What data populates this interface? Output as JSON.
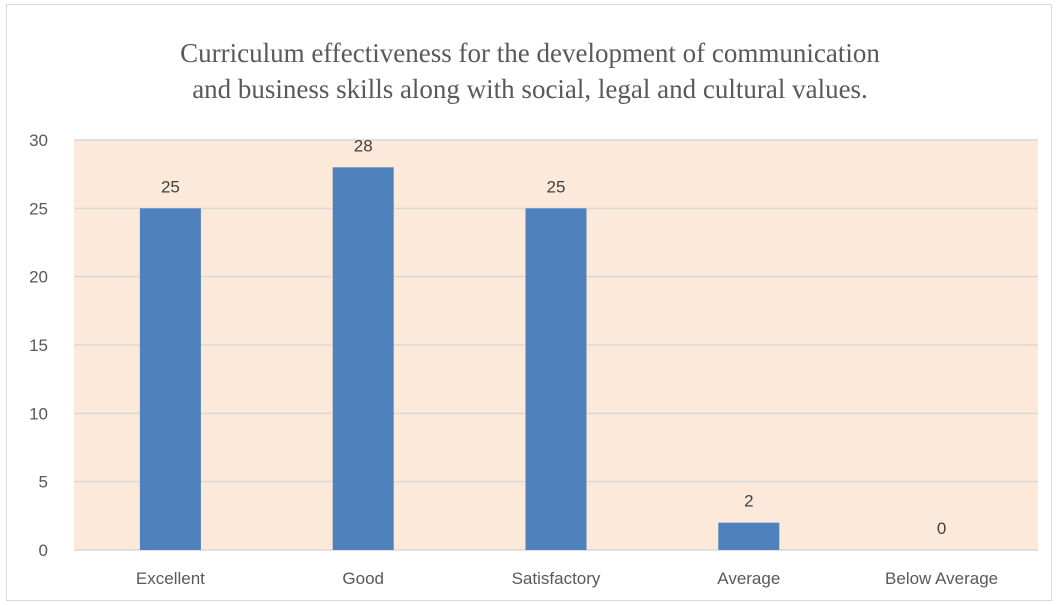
{
  "chart_data": {
    "type": "bar",
    "title_lines": [
      "Curriculum effectiveness for the development of communication",
      "and business skills along with social, legal and cultural values."
    ],
    "categories": [
      "Excellent",
      "Good",
      "Satisfactory",
      "Average",
      "Below Average"
    ],
    "values": [
      25,
      28,
      25,
      2,
      0
    ],
    "data_labels": [
      "25",
      "28",
      "25",
      "2",
      "0"
    ],
    "yticks": [
      "0",
      "5",
      "10",
      "15",
      "20",
      "25",
      "30"
    ],
    "ylim": [
      0,
      30
    ],
    "grid": true,
    "legend": "none",
    "colors": {
      "bar": "#4f81bd",
      "plot_background": "#fde9d9",
      "gridline": "#d9d9d9",
      "text": "#595959"
    }
  }
}
